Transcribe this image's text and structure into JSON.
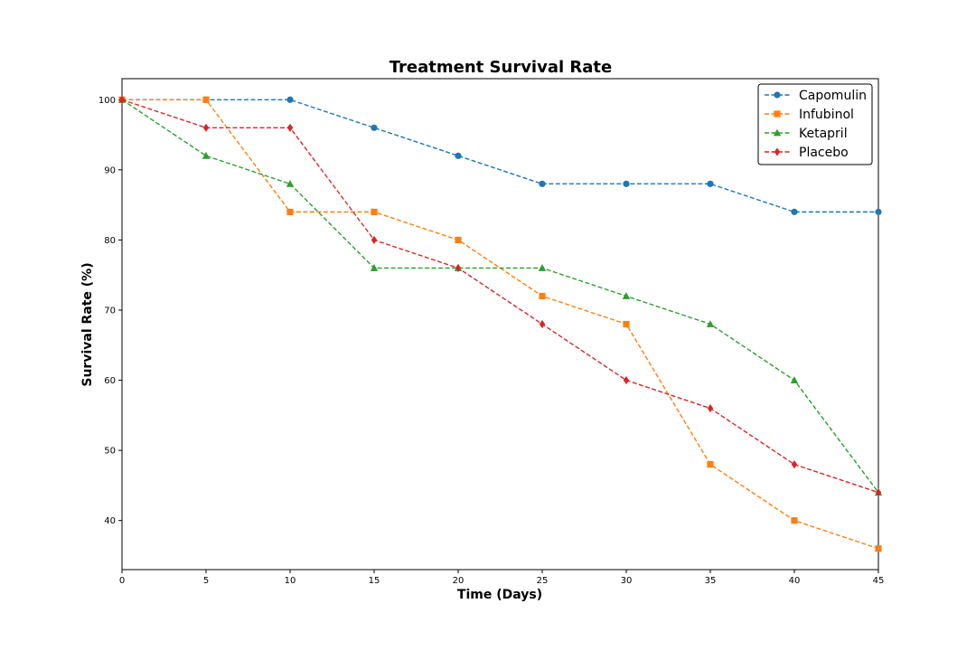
{
  "chart_data": {
    "type": "line",
    "title": "Treatment Survival Rate",
    "xlabel": "Time (Days)",
    "ylabel": "Survival Rate (%)",
    "x": [
      0,
      5,
      10,
      15,
      20,
      25,
      30,
      35,
      40,
      45
    ],
    "xlim": [
      0,
      45
    ],
    "ylim": [
      33,
      103
    ],
    "xticks": [
      0,
      5,
      10,
      15,
      20,
      25,
      30,
      35,
      40,
      45
    ],
    "yticks": [
      40,
      50,
      60,
      70,
      80,
      90,
      100
    ],
    "grid": false,
    "legend_position": "top-right",
    "series": [
      {
        "name": "Capomulin",
        "color": "#1f77b4",
        "marker": "circle",
        "values": [
          100,
          100,
          100,
          96,
          92,
          88,
          88,
          88,
          84,
          84
        ]
      },
      {
        "name": "Infubinol",
        "color": "#ff7f0e",
        "marker": "square",
        "values": [
          100,
          100,
          84,
          84,
          80,
          72,
          68,
          48,
          40,
          36
        ]
      },
      {
        "name": "Ketapril",
        "color": "#2ca02c",
        "marker": "triangle",
        "values": [
          100,
          92,
          88,
          76,
          76,
          76,
          72,
          68,
          60,
          44
        ]
      },
      {
        "name": "Placebo",
        "color": "#d62728",
        "marker": "diamond",
        "values": [
          100,
          96,
          96,
          80,
          76,
          68,
          60,
          56,
          48,
          44
        ]
      }
    ]
  }
}
